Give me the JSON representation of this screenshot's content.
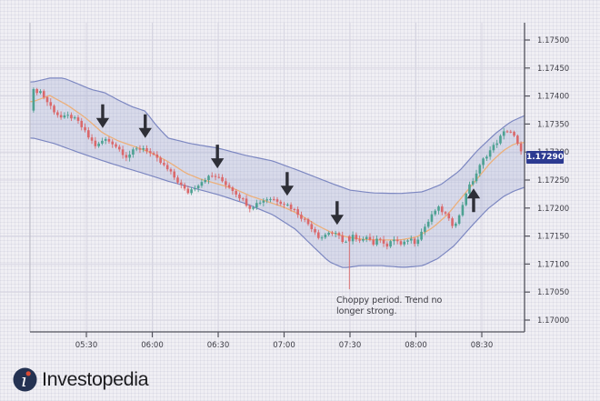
{
  "page": {
    "background": "#f0eff4"
  },
  "brand": {
    "name": "Investopedia",
    "logo_icon": "investopedia-i-icon",
    "logo_circle_color": "#243252",
    "logo_dot_color": "#d94a33",
    "text_color": "#1c1c1f"
  },
  "price_badge": {
    "value": "1.17290",
    "bg": "#2c3a91",
    "text_color": "#ffffff"
  },
  "annotation": {
    "line1": "Choppy period. Trend no",
    "line2": "longer strong."
  },
  "chart_data": {
    "type": "candlestick",
    "title": "",
    "xlabel": "",
    "ylabel": "",
    "legend": null,
    "grid": "on",
    "x_axis": {
      "labels": [
        "05:30",
        "06:00",
        "06:30",
        "07:00",
        "07:30",
        "08:00",
        "08:30"
      ]
    },
    "y_axis": {
      "min": 1.17,
      "max": 1.175,
      "tick_step": 0.0005,
      "labels": [
        "1.17500",
        "1.17450",
        "1.17400",
        "1.17350",
        "1.17300",
        "1.17250",
        "1.17200",
        "1.17150",
        "1.17100",
        "1.17050",
        "1.17000"
      ]
    },
    "last_price": 1.17291,
    "candle_count": 143,
    "noise": {
      "body": 8e-05,
      "wick": 5e-05,
      "first_open_offset": -0.00035
    },
    "close_path": [
      [
        0.017,
        1.17409
      ],
      [
        0.031,
        1.1739
      ],
      [
        0.046,
        1.17373
      ],
      [
        0.061,
        1.1736
      ],
      [
        0.077,
        1.17365
      ],
      [
        0.096,
        1.17352
      ],
      [
        0.114,
        1.17328
      ],
      [
        0.132,
        1.17309
      ],
      [
        0.147,
        1.17323
      ],
      [
        0.164,
        1.17317
      ],
      [
        0.178,
        1.17305
      ],
      [
        0.193,
        1.17292
      ],
      [
        0.211,
        1.17304
      ],
      [
        0.23,
        1.17308
      ],
      [
        0.244,
        1.17295
      ],
      [
        0.261,
        1.17282
      ],
      [
        0.279,
        1.17266
      ],
      [
        0.298,
        1.17247
      ],
      [
        0.316,
        1.17227
      ],
      [
        0.335,
        1.1724
      ],
      [
        0.353,
        1.17253
      ],
      [
        0.371,
        1.17258
      ],
      [
        0.39,
        1.17247
      ],
      [
        0.408,
        1.17234
      ],
      [
        0.426,
        1.17218
      ],
      [
        0.445,
        1.17201
      ],
      [
        0.463,
        1.17211
      ],
      [
        0.482,
        1.17218
      ],
      [
        0.5,
        1.17214
      ],
      [
        0.52,
        1.17206
      ],
      [
        0.537,
        1.17195
      ],
      [
        0.555,
        1.17179
      ],
      [
        0.574,
        1.17162
      ],
      [
        0.587,
        1.17146
      ],
      [
        0.605,
        1.17157
      ],
      [
        0.623,
        1.17151
      ],
      [
        0.638,
        1.17138
      ],
      [
        0.653,
        1.17151
      ],
      [
        0.666,
        1.17136
      ],
      [
        0.68,
        1.17154
      ],
      [
        0.695,
        1.17136
      ],
      [
        0.71,
        1.17147
      ],
      [
        0.724,
        1.17131
      ],
      [
        0.739,
        1.17146
      ],
      [
        0.754,
        1.17131
      ],
      [
        0.768,
        1.17147
      ],
      [
        0.781,
        1.17139
      ],
      [
        0.796,
        1.17161
      ],
      [
        0.811,
        1.1718
      ],
      [
        0.825,
        1.17201
      ],
      [
        0.84,
        1.17192
      ],
      [
        0.855,
        1.1717
      ],
      [
        0.869,
        1.1718
      ],
      [
        0.884,
        1.17227
      ],
      [
        0.897,
        1.17247
      ],
      [
        0.91,
        1.1727
      ],
      [
        0.923,
        1.17292
      ],
      [
        0.936,
        1.17305
      ],
      [
        0.949,
        1.1732
      ],
      [
        0.961,
        1.17334
      ],
      [
        0.972,
        1.17341
      ],
      [
        0.982,
        1.17328
      ],
      [
        0.991,
        1.1731
      ],
      [
        1.0,
        1.17291
      ]
    ],
    "band": {
      "upper": [
        [
          0.006,
          1.17425
        ],
        [
          0.04,
          1.17432
        ],
        [
          0.068,
          1.17432
        ],
        [
          0.096,
          1.17422
        ],
        [
          0.123,
          1.17412
        ],
        [
          0.151,
          1.17406
        ],
        [
          0.178,
          1.17393
        ],
        [
          0.206,
          1.17381
        ],
        [
          0.233,
          1.17373
        ],
        [
          0.256,
          1.17347
        ],
        [
          0.279,
          1.17325
        ],
        [
          0.325,
          1.17315
        ],
        [
          0.38,
          1.17307
        ],
        [
          0.436,
          1.17294
        ],
        [
          0.491,
          1.17284
        ],
        [
          0.546,
          1.17266
        ],
        [
          0.601,
          1.17247
        ],
        [
          0.647,
          1.17232
        ],
        [
          0.693,
          1.17227
        ],
        [
          0.748,
          1.17226
        ],
        [
          0.794,
          1.17229
        ],
        [
          0.831,
          1.17242
        ],
        [
          0.868,
          1.17266
        ],
        [
          0.904,
          1.17302
        ],
        [
          0.941,
          1.17333
        ],
        [
          0.972,
          1.17354
        ],
        [
          1.0,
          1.17365
        ]
      ],
      "lower": [
        [
          0.006,
          1.17325
        ],
        [
          0.05,
          1.17315
        ],
        [
          0.096,
          1.173
        ],
        [
          0.142,
          1.17286
        ],
        [
          0.188,
          1.17273
        ],
        [
          0.233,
          1.17261
        ],
        [
          0.279,
          1.17248
        ],
        [
          0.325,
          1.17237
        ],
        [
          0.38,
          1.17224
        ],
        [
          0.436,
          1.17208
        ],
        [
          0.491,
          1.17188
        ],
        [
          0.537,
          1.17162
        ],
        [
          0.574,
          1.1713
        ],
        [
          0.605,
          1.17104
        ],
        [
          0.634,
          1.17093
        ],
        [
          0.666,
          1.17097
        ],
        [
          0.712,
          1.17097
        ],
        [
          0.757,
          1.17094
        ],
        [
          0.794,
          1.17097
        ],
        [
          0.825,
          1.1711
        ],
        [
          0.858,
          1.17133
        ],
        [
          0.891,
          1.17166
        ],
        [
          0.925,
          1.17198
        ],
        [
          0.958,
          1.17221
        ],
        [
          0.98,
          1.17231
        ],
        [
          1.0,
          1.17237
        ]
      ],
      "middle": [
        [
          0.006,
          1.1739
        ],
        [
          0.04,
          1.17401
        ],
        [
          0.077,
          1.17383
        ],
        [
          0.114,
          1.1736
        ],
        [
          0.147,
          1.17334
        ],
        [
          0.178,
          1.1732
        ],
        [
          0.211,
          1.1731
        ],
        [
          0.244,
          1.17299
        ],
        [
          0.279,
          1.17283
        ],
        [
          0.316,
          1.17262
        ],
        [
          0.347,
          1.17251
        ],
        [
          0.38,
          1.17243
        ],
        [
          0.414,
          1.17234
        ],
        [
          0.447,
          1.17221
        ],
        [
          0.482,
          1.17211
        ],
        [
          0.515,
          1.17201
        ],
        [
          0.546,
          1.17188
        ],
        [
          0.579,
          1.1717
        ],
        [
          0.61,
          1.17156
        ],
        [
          0.642,
          1.17148
        ],
        [
          0.675,
          1.17144
        ],
        [
          0.712,
          1.17143
        ],
        [
          0.748,
          1.17143
        ],
        [
          0.781,
          1.17148
        ],
        [
          0.813,
          1.17164
        ],
        [
          0.844,
          1.17188
        ],
        [
          0.873,
          1.17219
        ],
        [
          0.903,
          1.17251
        ],
        [
          0.932,
          1.17282
        ],
        [
          0.958,
          1.17303
        ],
        [
          0.98,
          1.17315
        ],
        [
          1.0,
          1.17317
        ]
      ]
    },
    "arrows": [
      {
        "f": 0.147,
        "price": 1.17343,
        "dir": "down"
      },
      {
        "f": 0.233,
        "price": 1.17325,
        "dir": "down"
      },
      {
        "f": 0.379,
        "price": 1.17271,
        "dir": "down"
      },
      {
        "f": 0.52,
        "price": 1.17222,
        "dir": "down"
      },
      {
        "f": 0.621,
        "price": 1.1717,
        "dir": "down"
      },
      {
        "f": 0.897,
        "price": 1.17235,
        "dir": "up"
      }
    ],
    "spike_low": {
      "f": 0.643,
      "price": 1.17055
    },
    "colors": {
      "up_candle": "#4da192",
      "down_candle": "#da686b",
      "band_line": "#7c87c1",
      "band_fill": "rgba(134,146,200,0.22)",
      "middle_line": "#ecb07b",
      "arrow": "#2e2f37",
      "grid_major": "#d7d6e2",
      "axis": "#54545e",
      "tick_label": "#3e3e46"
    }
  }
}
